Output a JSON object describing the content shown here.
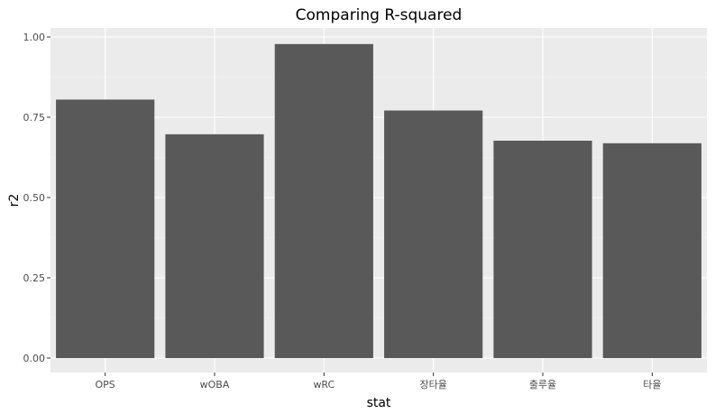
{
  "chart_data": {
    "type": "bar",
    "title": "Comparing R-squared",
    "xlabel": "stat",
    "ylabel": "r2",
    "categories": [
      "OPS",
      "wOBA",
      "wRC",
      "장타율",
      "출루율",
      "타율"
    ],
    "values": [
      0.805,
      0.697,
      0.978,
      0.771,
      0.677,
      0.669
    ],
    "ylim": [
      0,
      1
    ],
    "yticks": [
      "0.00",
      "0.25",
      "0.50",
      "0.75",
      "1.00"
    ],
    "grid": true,
    "bar_color": "#595959",
    "panel_color": "#ebebeb"
  }
}
